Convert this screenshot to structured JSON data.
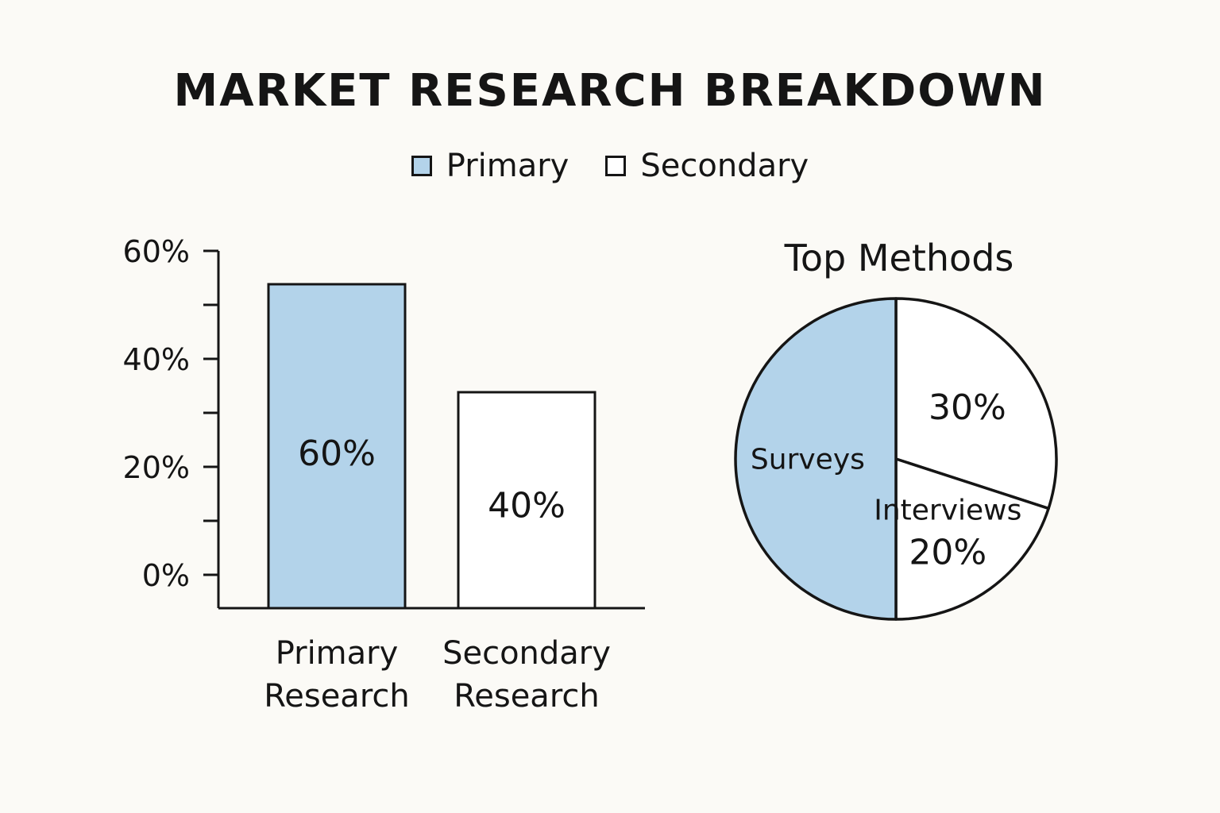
{
  "chart_data": [
    {
      "type": "bar",
      "title": "MARKET RESEARCH BREAKDOWN",
      "categories": [
        [
          "Primary",
          "Research"
        ],
        [
          "Secondary",
          "Research"
        ]
      ],
      "values": [
        60,
        40
      ],
      "value_labels": [
        "60%",
        "40%"
      ],
      "ylim": [
        0,
        60
      ],
      "yticks": [
        {
          "value": 0,
          "label": "0%"
        },
        {
          "value": 20,
          "label": "20%"
        },
        {
          "value": 40,
          "label": "40%"
        },
        {
          "value": 60,
          "label": "60%"
        }
      ],
      "minor_yticks": [
        10,
        30,
        50
      ],
      "colors": [
        "#b3d3ea",
        "#ffffff"
      ],
      "xlabel": "",
      "ylabel": "",
      "grid": false,
      "legend": {
        "placement": "top-center",
        "entries": [
          {
            "label": "Primary",
            "color": "#b3d3ea"
          },
          {
            "label": "Secondary",
            "color": "#ffffff"
          }
        ]
      }
    },
    {
      "type": "pie",
      "title": "Top Methods",
      "slices": [
        {
          "label": "Surveys",
          "value_label": "",
          "value": 50,
          "color": "#b3d3ea"
        },
        {
          "label": "",
          "value_label": "30%",
          "value": 30,
          "color": "#ffffff"
        },
        {
          "label": "Interviews",
          "value_label": "20%",
          "value": 20,
          "color": "#ffffff"
        }
      ]
    }
  ],
  "style": {
    "background": "#fbfaf6",
    "ink": "#151515",
    "accent": "#b3d3ea"
  }
}
